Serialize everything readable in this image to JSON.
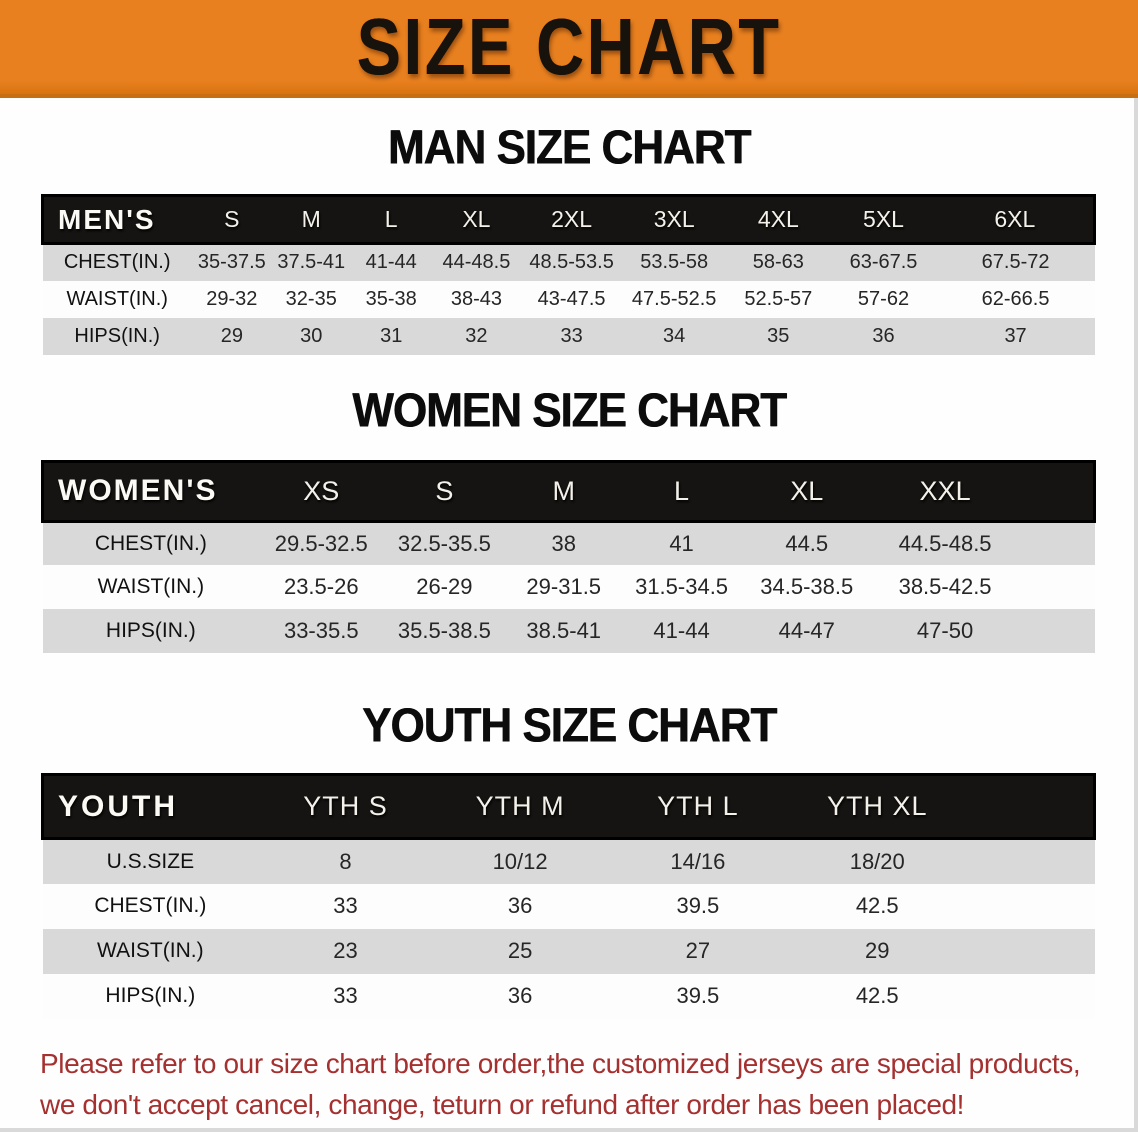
{
  "banner": {
    "title": "SIZE CHART"
  },
  "colors": {
    "banner_bg": "#e8801f",
    "banner_text": "#17120b",
    "header_bar": "#161412",
    "stripe": "#d9d9d9",
    "disclaimer_red": "#a53030"
  },
  "sections": {
    "men": {
      "heading": "MAN SIZE CHART",
      "table": {
        "label": "MEN'S",
        "columns": [
          "S",
          "M",
          "L",
          "XL",
          "2XL",
          "3XL",
          "4XL",
          "5XL",
          "6XL"
        ],
        "rows": [
          {
            "label": "CHEST(IN.)",
            "values": [
              "35-37.5",
              "37.5-41",
              "41-44",
              "44-48.5",
              "48.5-53.5",
              "53.5-58",
              "58-63",
              "63-67.5",
              "67.5-72"
            ]
          },
          {
            "label": "WAIST(IN.)",
            "values": [
              "29-32",
              "32-35",
              "35-38",
              "38-43",
              "43-47.5",
              "47.5-52.5",
              "52.5-57",
              "57-62",
              "62-66.5"
            ]
          },
          {
            "label": "HIPS(IN.)",
            "values": [
              "29",
              "30",
              "31",
              "32",
              "33",
              "34",
              "35",
              "36",
              "37"
            ]
          }
        ]
      }
    },
    "women": {
      "heading": "WOMEN SIZE CHART",
      "table": {
        "label": "WOMEN'S",
        "columns": [
          "XS",
          "S",
          "M",
          "L",
          "XL",
          "XXL"
        ],
        "rows": [
          {
            "label": "CHEST(IN.)",
            "values": [
              "29.5-32.5",
              "32.5-35.5",
              "38",
              "41",
              "44.5",
              "44.5-48.5"
            ]
          },
          {
            "label": "WAIST(IN.)",
            "values": [
              "23.5-26",
              "26-29",
              "29-31.5",
              "31.5-34.5",
              "34.5-38.5",
              "38.5-42.5"
            ]
          },
          {
            "label": "HIPS(IN.)",
            "values": [
              "33-35.5",
              "35.5-38.5",
              "38.5-41",
              "41-44",
              "44-47",
              "47-50"
            ]
          }
        ]
      }
    },
    "youth": {
      "heading": "YOUTH SIZE CHART",
      "table": {
        "label": "YOUTH",
        "columns": [
          "YTH S",
          "YTH M",
          "YTH L",
          "YTH XL"
        ],
        "rows": [
          {
            "label": "U.S.SIZE",
            "values": [
              "8",
              "10/12",
              "14/16",
              "18/20"
            ]
          },
          {
            "label": "CHEST(IN.)",
            "values": [
              "33",
              "36",
              "39.5",
              "42.5"
            ]
          },
          {
            "label": "WAIST(IN.)",
            "values": [
              "23",
              "25",
              "27",
              "29"
            ]
          },
          {
            "label": "HIPS(IN.)",
            "values": [
              "33",
              "36",
              "39.5",
              "42.5"
            ]
          }
        ]
      }
    }
  },
  "disclaimer": {
    "line1": "Please refer to our size chart before order,the customized jerseys are special products,",
    "line2": "we don't accept cancel, change, teturn or refund after order has been placed!"
  }
}
